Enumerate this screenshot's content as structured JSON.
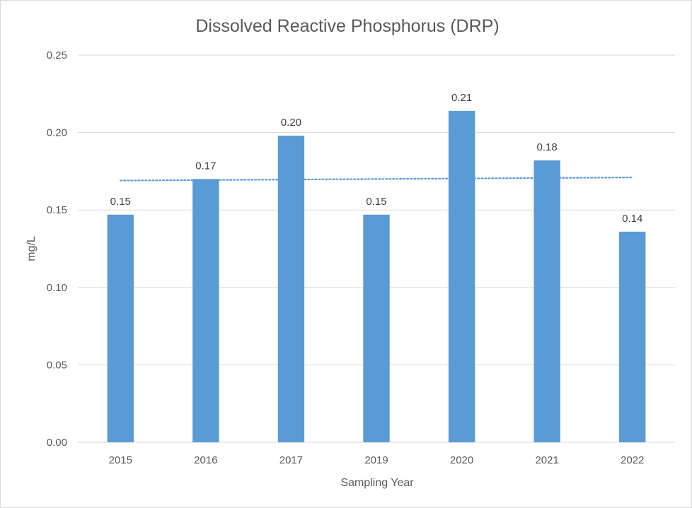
{
  "chart_data": {
    "type": "bar",
    "title": "Dissolved Reactive Phosphorus (DRP)",
    "xlabel": "Sampling Year",
    "ylabel": "mg/L",
    "categories": [
      "2015",
      "2016",
      "2017",
      "2019",
      "2020",
      "2021",
      "2022"
    ],
    "values": [
      0.147,
      0.17,
      0.198,
      0.147,
      0.214,
      0.182,
      0.136
    ],
    "data_labels": [
      "0.15",
      "0.17",
      "0.20",
      "0.15",
      "0.21",
      "0.18",
      "0.14"
    ],
    "ylim": [
      0,
      0.25
    ],
    "yticks": [
      "0.00",
      "0.05",
      "0.10",
      "0.15",
      "0.20",
      "0.25"
    ],
    "ytick_values": [
      0,
      0.05,
      0.1,
      0.15,
      0.2,
      0.25
    ],
    "grid": true,
    "legend": "none",
    "bar_color": "#5b9bd5",
    "trendline": {
      "type": "linear",
      "style": "dotted",
      "color": "#5b9bd5",
      "start": 0.169,
      "end": 0.171
    }
  }
}
